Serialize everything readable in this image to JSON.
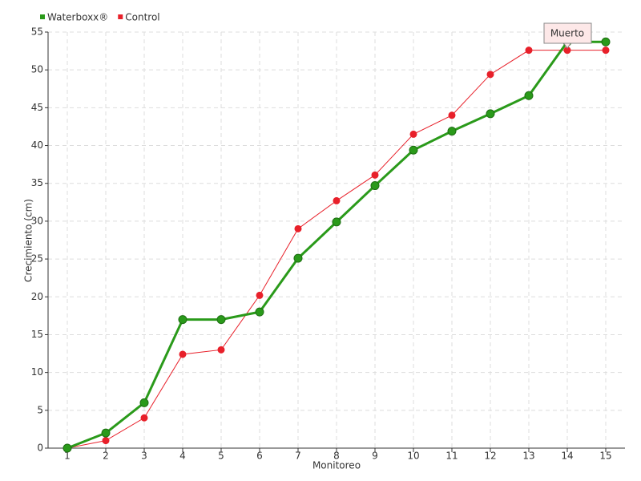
{
  "chart_data": {
    "type": "line",
    "categories": [
      "1",
      "2",
      "3",
      "4",
      "5",
      "6",
      "7",
      "8",
      "9",
      "10",
      "11",
      "12",
      "13",
      "14",
      "15"
    ],
    "series": [
      {
        "name": "Waterboxx®",
        "color": "#2a9a1a",
        "values": [
          0,
          2,
          6,
          17,
          17,
          18,
          25.1,
          29.9,
          34.7,
          39.4,
          41.9,
          44.2,
          46.6,
          53.7,
          53.7
        ]
      },
      {
        "name": "Control",
        "color": "#e8202a",
        "values": [
          0,
          1,
          4,
          12.4,
          13,
          20.2,
          29,
          32.7,
          36.1,
          41.5,
          44,
          49.4,
          52.6,
          52.6,
          52.6
        ]
      }
    ],
    "ylim": [
      0,
      55
    ],
    "yticks": [
      0,
      5,
      10,
      15,
      20,
      25,
      30,
      35,
      40,
      45,
      50,
      55
    ],
    "xlabel": "Monitoreo",
    "ylabel": "Crecimiento (cm)",
    "grid": true,
    "annotation": {
      "text": "Muerto",
      "category": "14"
    }
  }
}
